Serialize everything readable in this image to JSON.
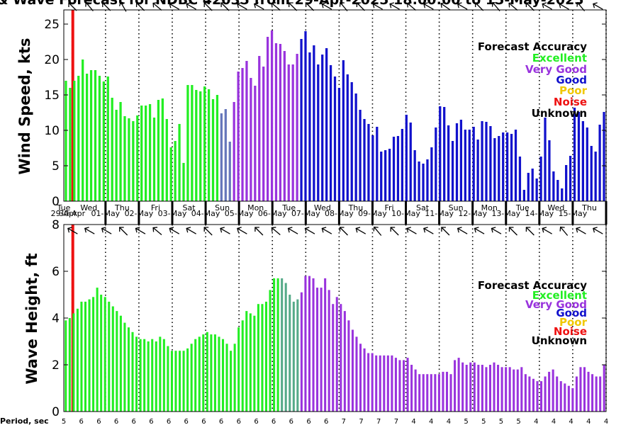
{
  "title": "& Wave Forecast for NDBC 42035 from 29-Apr-2025 18:00:00 to 15-May-2025",
  "colors": {
    "excellent": "#22ee22",
    "verygood": "#9933dd",
    "good": "#1111cc",
    "poor": "#f0c800",
    "noise": "#ee1111",
    "unknown": "#000000",
    "transition": "#55aa88",
    "transition2": "#6677bb"
  },
  "legend": {
    "title": "Forecast Accuracy",
    "items": [
      {
        "label": "Excellent",
        "color": "#22ee22"
      },
      {
        "label": "Very Good",
        "color": "#9933dd"
      },
      {
        "label": "Good",
        "color": "#1111cc"
      },
      {
        "label": "Poor",
        "color": "#f0c800"
      },
      {
        "label": "Noise",
        "color": "#ee1111"
      },
      {
        "label": "Unknown",
        "color": "#000000"
      }
    ]
  },
  "days": [
    {
      "dow": "Tue",
      "date": "29-Apr"
    },
    {
      "dow": "Wed",
      "date": "30-Apr"
    },
    {
      "dow": "Thu",
      "date": "01-May"
    },
    {
      "dow": "Fri",
      "date": "02-May"
    },
    {
      "dow": "Sat",
      "date": "03-May"
    },
    {
      "dow": "Sun",
      "date": "04-May"
    },
    {
      "dow": "Mon",
      "date": "05-May"
    },
    {
      "dow": "Tue",
      "date": "06-May"
    },
    {
      "dow": "Wed",
      "date": "07-May"
    },
    {
      "dow": "Thu",
      "date": "08-May"
    },
    {
      "dow": "Fri",
      "date": "09-May"
    },
    {
      "dow": "Sat",
      "date": "10-May"
    },
    {
      "dow": "Sun",
      "date": "11-May"
    },
    {
      "dow": "Mon",
      "date": "12-May"
    },
    {
      "dow": "Tue",
      "date": "13-May"
    },
    {
      "dow": "Wed",
      "date": "14-May"
    },
    {
      "dow": "Thu",
      "date": "15-May"
    }
  ],
  "period_label": "Period, sec",
  "periods": [
    5,
    6,
    6,
    6,
    6,
    6,
    6,
    6,
    6,
    6,
    6,
    6,
    6,
    6,
    6,
    6,
    7,
    7,
    7,
    7,
    4,
    4,
    4,
    5,
    5,
    5,
    5,
    4,
    4,
    4,
    4,
    4
  ],
  "chart_data": [
    {
      "type": "bar",
      "ylabel": "Wind Speed, kts",
      "ylim": [
        0,
        27
      ],
      "yticks": [
        0,
        5,
        10,
        15,
        20,
        25
      ],
      "xlim": [
        0,
        16.25
      ],
      "x_units": "days since 29-Apr 18:00",
      "noise_line_x": 0.27,
      "values": [
        17,
        16,
        17,
        17.7,
        20,
        18,
        18.5,
        18.5,
        17.7,
        16.9,
        17.6,
        14.6,
        12.9,
        14,
        12,
        11.7,
        11.3,
        12.1,
        13.5,
        13.5,
        13.7,
        11.8,
        14.3,
        14.5,
        11.6,
        7.6,
        8.5,
        10.9,
        5.4,
        16.4,
        16.4,
        15.7,
        15.5,
        16.2,
        15.8,
        14.4,
        15,
        12.4,
        13,
        8.4,
        14,
        18.3,
        18.8,
        19.8,
        17.4,
        16.3,
        20.5,
        19,
        23.2,
        24.1,
        22.3,
        22.2,
        21.2,
        19.3,
        19.3,
        20.8,
        22.9,
        24,
        21,
        22,
        19.3,
        20.7,
        21.6,
        19.2,
        17.6,
        16,
        19.9,
        17.9,
        16.8,
        15.2,
        12.9,
        11.6,
        10.9,
        9.3,
        10.5,
        7,
        7.2,
        7.4,
        9.1,
        9.2,
        10.2,
        12.2,
        11.1,
        7.2,
        5.6,
        5.3,
        5.9,
        7.6,
        10.4,
        13.4,
        13.3,
        10.7,
        8.5,
        11,
        11.5,
        10.1,
        10.1,
        10.5,
        8.7,
        11.3,
        11.2,
        10.6,
        8.9,
        9.2,
        9.7,
        9.7,
        9.5,
        10.1,
        6.3,
        1.6,
        4,
        4.6,
        3.2,
        6.3,
        11.8,
        8.6,
        4.2,
        3,
        1.8,
        5.1,
        6.4,
        13.2,
        12.6,
        11.3,
        10.4,
        7.8,
        7,
        10.8,
        12.6
      ],
      "categories_color": [
        "excellent",
        "excellent",
        "excellent",
        "excellent",
        "excellent",
        "excellent",
        "excellent",
        "excellent",
        "excellent",
        "excellent",
        "excellent",
        "excellent",
        "excellent",
        "excellent",
        "excellent",
        "excellent",
        "excellent",
        "excellent",
        "excellent",
        "excellent",
        "excellent",
        "excellent",
        "excellent",
        "excellent",
        "excellent",
        "excellent",
        "excellent",
        "excellent",
        "excellent",
        "excellent",
        "excellent",
        "excellent",
        "excellent",
        "excellent",
        "excellent",
        "excellent",
        "excellent",
        "transition2",
        "transition2",
        "transition2",
        "verygood",
        "verygood",
        "verygood",
        "verygood",
        "verygood",
        "verygood",
        "verygood",
        "verygood",
        "verygood",
        "verygood",
        "verygood",
        "verygood",
        "verygood",
        "verygood",
        "verygood",
        "verygood",
        "good",
        "good",
        "good",
        "good",
        "good",
        "good",
        "good",
        "good",
        "good",
        "good",
        "good",
        "good",
        "good",
        "good",
        "good",
        "good",
        "good",
        "good",
        "good",
        "good",
        "good",
        "good",
        "good",
        "good",
        "good",
        "good",
        "good",
        "good",
        "good",
        "good",
        "good",
        "good",
        "good",
        "good",
        "good",
        "good",
        "good",
        "good",
        "good",
        "good",
        "good",
        "good",
        "good",
        "good",
        "good",
        "good",
        "good",
        "good",
        "good",
        "good",
        "good",
        "good",
        "good",
        "good",
        "good",
        "good",
        "good",
        "good",
        "good",
        "good",
        "good",
        "good",
        "good",
        "good",
        "good",
        "good",
        "good",
        "good",
        "good",
        "good",
        "good",
        "good",
        "good",
        "good"
      ]
    },
    {
      "type": "bar",
      "ylabel": "Wave Height, ft",
      "ylim": [
        0,
        8
      ],
      "yticks": [
        0,
        2,
        4,
        6,
        8
      ],
      "xlim": [
        0,
        16.25
      ],
      "x_units": "days since 29-Apr 18:00",
      "noise_line_x": 0.27,
      "values": [
        3.9,
        4,
        4.2,
        4.4,
        4.7,
        4.7,
        4.8,
        4.9,
        5.3,
        5,
        4.9,
        4.7,
        4.5,
        4.3,
        4.1,
        3.8,
        3.6,
        3.4,
        3.2,
        3.1,
        3.1,
        3,
        3.1,
        3,
        3.2,
        3.1,
        2.8,
        2.6,
        2.6,
        2.6,
        2.6,
        2.7,
        2.9,
        3.1,
        3.2,
        3.3,
        3.4,
        3.3,
        3.3,
        3.2,
        3.1,
        2.9,
        2.6,
        2.9,
        3.6,
        3.9,
        4.3,
        4.2,
        4.1,
        4.6,
        4.6,
        4.7,
        5.2,
        5.7,
        5.7,
        5.7,
        5.5,
        5,
        4.7,
        4.8,
        5.1,
        5.8,
        5.8,
        5.7,
        5.3,
        5.3,
        5.7,
        5.2,
        4.6,
        4.9,
        4.6,
        4.3,
        3.9,
        3.5,
        3.2,
        2.9,
        2.7,
        2.5,
        2.5,
        2.4,
        2.4,
        2.4,
        2.4,
        2.4,
        2.3,
        2.2,
        2.2,
        2.3,
        2,
        1.8,
        1.6,
        1.6,
        1.6,
        1.6,
        1.6,
        1.6,
        1.7,
        1.7,
        1.6,
        2.2,
        2.3,
        2.1,
        2,
        2.1,
        2.1,
        2,
        2,
        1.9,
        2,
        2.1,
        2,
        1.9,
        1.9,
        1.9,
        1.8,
        1.8,
        1.9,
        1.6,
        1.5,
        1.4,
        1.3,
        1.3,
        1.5,
        1.7,
        1.8,
        1.5,
        1.3,
        1.2,
        1.1,
        1,
        1.5,
        1.9,
        1.9,
        1.7,
        1.6,
        1.5,
        1.5,
        2
      ],
      "categories_color": [
        "excellent",
        "excellent",
        "excellent",
        "excellent",
        "excellent",
        "excellent",
        "excellent",
        "excellent",
        "excellent",
        "excellent",
        "excellent",
        "excellent",
        "excellent",
        "excellent",
        "excellent",
        "excellent",
        "excellent",
        "excellent",
        "excellent",
        "excellent",
        "excellent",
        "excellent",
        "excellent",
        "excellent",
        "excellent",
        "excellent",
        "excellent",
        "excellent",
        "excellent",
        "excellent",
        "excellent",
        "excellent",
        "excellent",
        "excellent",
        "excellent",
        "excellent",
        "excellent",
        "excellent",
        "excellent",
        "excellent",
        "excellent",
        "excellent",
        "excellent",
        "excellent",
        "excellent",
        "excellent",
        "excellent",
        "excellent",
        "excellent",
        "excellent",
        "excellent",
        "excellent",
        "excellent",
        "excellent",
        "excellent",
        "transition",
        "transition",
        "transition",
        "transition",
        "transition",
        "verygood",
        "verygood",
        "verygood",
        "verygood",
        "verygood",
        "verygood",
        "verygood",
        "verygood",
        "verygood",
        "verygood",
        "verygood",
        "verygood",
        "verygood",
        "verygood",
        "verygood",
        "verygood",
        "verygood",
        "verygood",
        "verygood",
        "verygood",
        "verygood",
        "verygood",
        "verygood",
        "verygood",
        "verygood",
        "verygood",
        "verygood",
        "verygood",
        "verygood",
        "verygood",
        "verygood",
        "verygood",
        "verygood",
        "verygood",
        "verygood",
        "verygood",
        "verygood",
        "verygood",
        "verygood",
        "verygood",
        "verygood",
        "verygood",
        "verygood",
        "verygood",
        "verygood",
        "verygood",
        "verygood",
        "verygood",
        "verygood",
        "verygood",
        "verygood",
        "verygood",
        "verygood",
        "verygood",
        "verygood",
        "verygood",
        "verygood",
        "verygood",
        "verygood",
        "verygood",
        "verygood",
        "verygood",
        "verygood",
        "verygood",
        "verygood",
        "verygood",
        "verygood",
        "verygood",
        "verygood",
        "verygood",
        "verygood",
        "verygood",
        "verygood",
        "verygood",
        "verygood",
        "verygood",
        "verygood",
        "verygood"
      ]
    }
  ],
  "wind_arrows": [
    315,
    320,
    315,
    330,
    315,
    310,
    300,
    300,
    315,
    315,
    300,
    300,
    310,
    315,
    315,
    300,
    320,
    315,
    300,
    300,
    310,
    300,
    305,
    300,
    315,
    320,
    310,
    315,
    300,
    300,
    320,
    300
  ],
  "wave_arrows": [
    300,
    300,
    300,
    315,
    300,
    310,
    300,
    300,
    315,
    300,
    300,
    315,
    310,
    300,
    300,
    300,
    315,
    300,
    320,
    315,
    300,
    300,
    315,
    300,
    300,
    300,
    315,
    315,
    300,
    320,
    300,
    300
  ]
}
